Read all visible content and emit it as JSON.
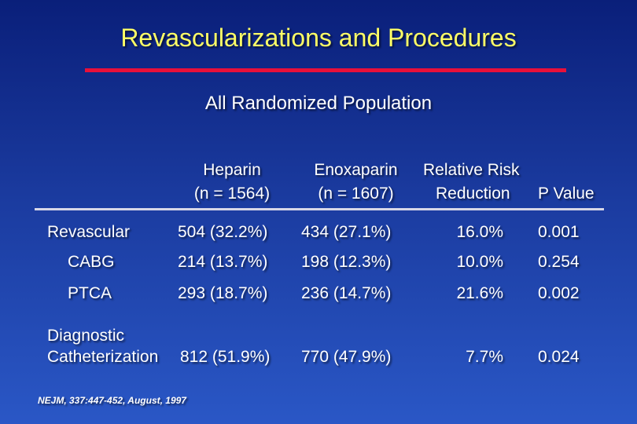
{
  "slide": {
    "title": "Revascularizations and Procedures",
    "subtitle": "All Randomized Population",
    "citation": "NEJM, 337:447-452, August, 1997",
    "colors": {
      "background": "#1a3a9e",
      "title": "#ffff66",
      "title_rule": "#e8103a"
    }
  },
  "table": {
    "headers": {
      "heparin": [
        "Heparin",
        "(n = 1564)"
      ],
      "enoxaparin": [
        "Enoxaparin",
        "(n = 1607)"
      ],
      "rrr": [
        "Relative Risk",
        "Reduction"
      ],
      "pvalue": "P Value"
    },
    "rows": [
      {
        "label": "Revascular",
        "heparin": "504 (32.2%)",
        "enoxaparin": "434 (27.1%)",
        "rrr": "16.0%",
        "p": "0.001"
      },
      {
        "label": "CABG",
        "heparin": "214 (13.7%)",
        "enoxaparin": "198 (12.3%)",
        "rrr": "10.0%",
        "p": "0.254"
      },
      {
        "label": "PTCA",
        "heparin": "293 (18.7%)",
        "enoxaparin": "236 (14.7%)",
        "rrr": "21.6%",
        "p": "0.002"
      },
      {
        "label_lines": [
          "Diagnostic",
          "Catheterization"
        ],
        "heparin": "812 (51.9%)",
        "enoxaparin": "770 (47.9%)",
        "rrr": "7.7%",
        "p": "0.024"
      }
    ]
  }
}
